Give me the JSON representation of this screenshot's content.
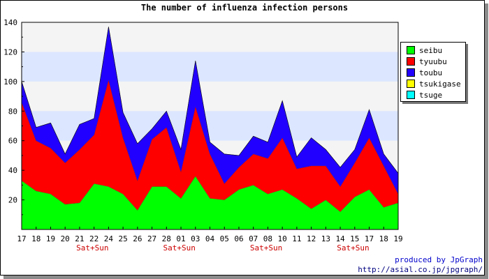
{
  "chart_data": {
    "type": "area",
    "stacked": true,
    "title": "The number of influenza infection persons",
    "categories": [
      "17",
      "18",
      "19",
      "20",
      "21",
      "22",
      "24",
      "25",
      "26",
      "27",
      "28",
      "01",
      "03",
      "04",
      "05",
      "06",
      "07",
      "08",
      "10",
      "11",
      "12",
      "13",
      "14",
      "15",
      "17",
      "18",
      "19"
    ],
    "weekend_label": "Sat+Sun",
    "weekend_marks": [
      "22",
      "01",
      "08",
      "15"
    ],
    "ylim": [
      0,
      140
    ],
    "yticks": [
      20,
      40,
      60,
      80,
      100,
      120,
      140
    ],
    "grid_bands": "alternating white and light blue every 20",
    "legend_position": "right",
    "series": [
      {
        "name": "seibu",
        "color": "#00ff00",
        "values": [
          33,
          26,
          24,
          17,
          18,
          31,
          29,
          24,
          13,
          29,
          29,
          21,
          36,
          21,
          20,
          27,
          30,
          24,
          27,
          21,
          14,
          20,
          12,
          22,
          27,
          15,
          18
        ]
      },
      {
        "name": "tyuubu",
        "color": "#ff0000",
        "values": [
          53,
          34,
          31,
          28,
          36,
          33,
          72,
          38,
          20,
          32,
          40,
          18,
          47,
          30,
          11,
          15,
          21,
          24,
          35,
          20,
          29,
          23,
          17,
          23,
          35,
          28,
          6
        ]
      },
      {
        "name": "toubu",
        "color": "#2200ff",
        "values": [
          14,
          9,
          17,
          6,
          17,
          11,
          36,
          17,
          25,
          7,
          11,
          15,
          31,
          8,
          20,
          8,
          12,
          11,
          25,
          8,
          19,
          11,
          13,
          9,
          19,
          8,
          14
        ]
      },
      {
        "name": "tsukigase",
        "color": "#ffff00",
        "values": [
          0,
          0,
          0,
          0,
          0,
          0,
          0,
          0,
          0,
          0,
          0,
          0,
          0,
          0,
          0,
          0,
          0,
          0,
          0,
          0,
          0,
          0,
          0,
          0,
          0,
          0,
          0
        ]
      },
      {
        "name": "tsuge",
        "color": "#00ffff",
        "values": [
          0,
          0,
          0,
          0,
          0,
          0,
          0,
          0,
          0,
          0,
          0,
          0,
          0,
          0,
          0,
          0,
          0,
          0,
          0,
          0,
          0,
          0,
          0,
          0,
          0,
          0,
          0
        ]
      }
    ]
  },
  "credits": {
    "line1": "produced by JpGraph",
    "line2": "http://asial.co.jp/jpgraph/"
  }
}
